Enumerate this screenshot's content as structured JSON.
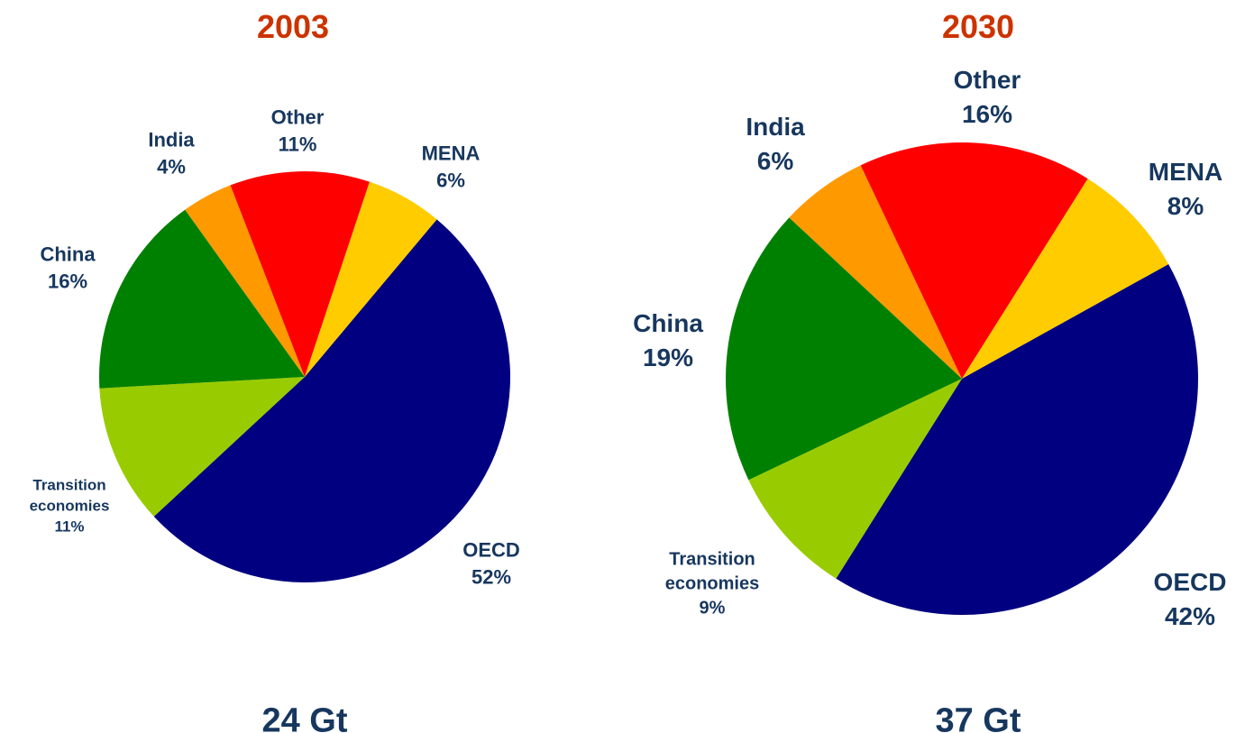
{
  "chart_data": [
    {
      "type": "pie",
      "title": "2003",
      "caption": "24 Gt",
      "categories": [
        "OECD",
        "Transition economies",
        "China",
        "India",
        "Other",
        "MENA"
      ],
      "values": [
        52,
        11,
        16,
        4,
        11,
        6
      ],
      "value_labels": [
        "52%",
        "11%",
        "16%",
        "4%",
        "11%",
        "6%"
      ],
      "colors": [
        "#000080",
        "#99cc00",
        "#008000",
        "#ff9900",
        "#ff0000",
        "#ffcc00"
      ]
    },
    {
      "type": "pie",
      "title": "2030",
      "caption": "37 Gt",
      "categories": [
        "OECD",
        "Transition economies",
        "China",
        "India",
        "Other",
        "MENA"
      ],
      "values": [
        42,
        9,
        19,
        6,
        16,
        8
      ],
      "value_labels": [
        "42%",
        "9%",
        "19%",
        "6%",
        "16%",
        "8%"
      ],
      "colors": [
        "#000080",
        "#99cc00",
        "#008000",
        "#ff9900",
        "#ff0000",
        "#ffcc00"
      ]
    }
  ]
}
